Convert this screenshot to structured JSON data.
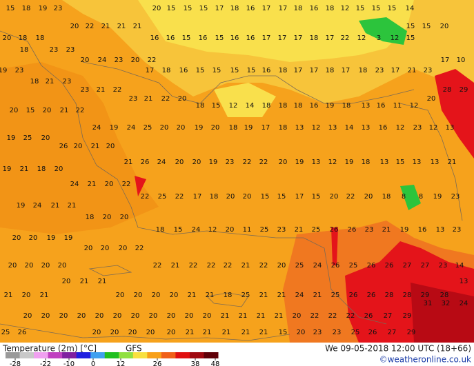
{
  "map": {
    "rows": [
      [
        15,
        18,
        19,
        23,
        20,
        15,
        15,
        15,
        17,
        18,
        16,
        17,
        17,
        18,
        16,
        18,
        12,
        15,
        15,
        15,
        14
      ],
      [
        20,
        22,
        21,
        21,
        21,
        15,
        15,
        20
      ],
      [
        20,
        18,
        18,
        16,
        16,
        15,
        16,
        15,
        16,
        16,
        17,
        17,
        17,
        18,
        17,
        22,
        12,
        3,
        12,
        15
      ],
      [
        18,
        23,
        23
      ],
      [
        20,
        24,
        23,
        20,
        22,
        17,
        10
      ],
      [
        19,
        23,
        17,
        18,
        16,
        15,
        15,
        15,
        15,
        16,
        18,
        17,
        17,
        18,
        17,
        18,
        23,
        17,
        21,
        23
      ],
      [
        18,
        21,
        23
      ],
      [
        23,
        21,
        22,
        28,
        29
      ],
      [
        23,
        21,
        22,
        20,
        20
      ],
      [
        18,
        15,
        12,
        14,
        18,
        18,
        18,
        16,
        19,
        18,
        13,
        16,
        11,
        12
      ],
      [
        20,
        15,
        20,
        21,
        22
      ],
      [
        24,
        19,
        24,
        25,
        20,
        20,
        19,
        20,
        18,
        19,
        17,
        18,
        13,
        12,
        13,
        14,
        13,
        16,
        12,
        23,
        12,
        13
      ],
      [
        19,
        25,
        20
      ],
      [
        26,
        20,
        21,
        20
      ],
      [
        21,
        26,
        24,
        20,
        20,
        19,
        23,
        22,
        22,
        20,
        19,
        13,
        12,
        19,
        18,
        13,
        15,
        13,
        13,
        21
      ],
      [
        19,
        21,
        18,
        20
      ],
      [
        24,
        21,
        20,
        22
      ],
      [
        22,
        25,
        22,
        17,
        18,
        20,
        20,
        15,
        15,
        17,
        15,
        20,
        22,
        20,
        18,
        8,
        8,
        19,
        23
      ],
      [
        19,
        24,
        21,
        21
      ],
      [
        18,
        20,
        20
      ],
      [
        18,
        15,
        24,
        12,
        20,
        11,
        25,
        23,
        21,
        25,
        26,
        26,
        23,
        21,
        19,
        16,
        13,
        23
      ],
      [
        20,
        20,
        19,
        19
      ],
      [
        20,
        20,
        20,
        22
      ],
      [
        20,
        20,
        20,
        20,
        22,
        21,
        22,
        22,
        22,
        21,
        22,
        20,
        25,
        24,
        26,
        25,
        26,
        26,
        27,
        27,
        23,
        14
      ],
      [
        20,
        21,
        21,
        13
      ],
      [
        21,
        20,
        21,
        20,
        20,
        20,
        20,
        21,
        21,
        18,
        25,
        21,
        21,
        24,
        21,
        25,
        26,
        26,
        28,
        28,
        29,
        28
      ],
      [
        31,
        32,
        24
      ],
      [
        20,
        20,
        20,
        20,
        20,
        20,
        20,
        20,
        20,
        20,
        20,
        21,
        21,
        21,
        21,
        20,
        22,
        22,
        22,
        26,
        27,
        29
      ],
      [
        25,
        26,
        20,
        20,
        20,
        20,
        20,
        21,
        21,
        21,
        21,
        21,
        15,
        20,
        23,
        23,
        25,
        26,
        27,
        29
      ]
    ]
  },
  "legend": {
    "title": "Temperature (2m) [°C]",
    "model": "GFS",
    "scale_ticks": [
      -28,
      -22,
      -10,
      0,
      12,
      26,
      38,
      48
    ],
    "datetime": "We 09-05-2018 12:00 UTC (18+66)",
    "credit": "©weatheronline.co.uk"
  }
}
